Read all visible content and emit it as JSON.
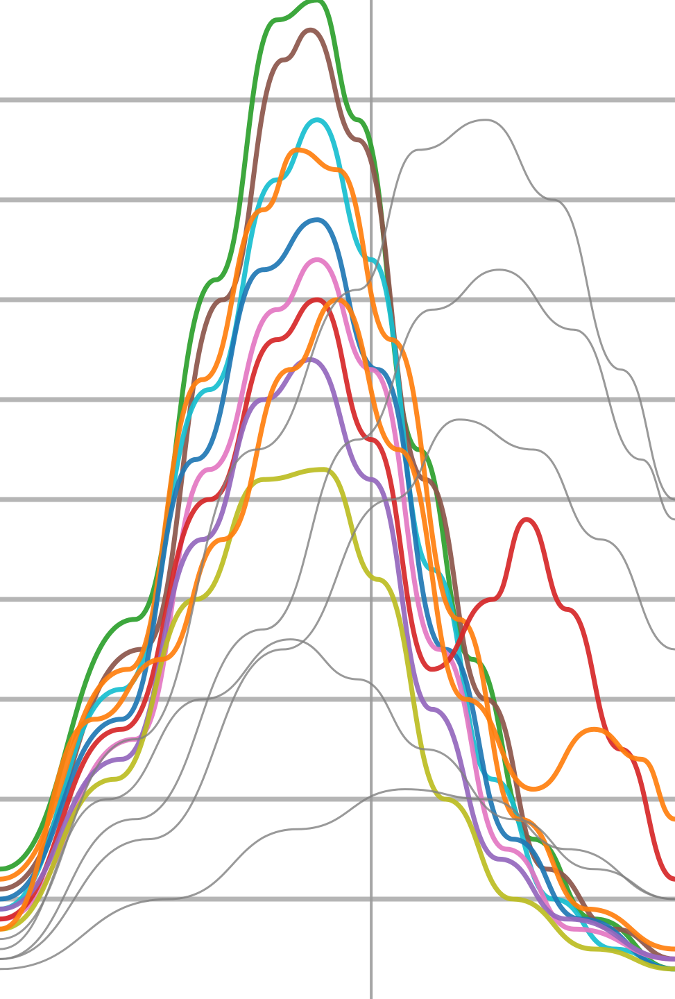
{
  "chart_data": {
    "type": "line",
    "title": "",
    "xlabel": "",
    "ylabel": "",
    "grid": true,
    "legend": "none",
    "xlim": [
      0,
      100
    ],
    "ylim": [
      0,
      100
    ],
    "series_style": "many overlapping curves, one thin gray family and one thick colored family",
    "series": [
      {
        "color": "#2ca02c",
        "values": [
          [
            0,
            13
          ],
          [
            20,
            38
          ],
          [
            32,
            72
          ],
          [
            41,
            98
          ],
          [
            47,
            100
          ],
          [
            53,
            88
          ],
          [
            62,
            55
          ],
          [
            70,
            34
          ],
          [
            79,
            16
          ],
          [
            88,
            8
          ],
          [
            100,
            3
          ]
        ]
      },
      {
        "color": "#8c564b",
        "values": [
          [
            0,
            11
          ],
          [
            21,
            35
          ],
          [
            33,
            70
          ],
          [
            42,
            94
          ],
          [
            46,
            97
          ],
          [
            53,
            86
          ],
          [
            63,
            52
          ],
          [
            72,
            30
          ],
          [
            81,
            13
          ],
          [
            91,
            7
          ],
          [
            100,
            4
          ]
        ]
      },
      {
        "color": "#17becf",
        "values": [
          [
            0,
            9
          ],
          [
            18,
            31
          ],
          [
            31,
            61
          ],
          [
            41,
            82
          ],
          [
            47,
            88
          ],
          [
            55,
            74
          ],
          [
            64,
            43
          ],
          [
            73,
            22
          ],
          [
            82,
            10
          ],
          [
            91,
            5
          ],
          [
            100,
            3
          ]
        ]
      },
      {
        "color": "#ff7f0e",
        "values": [
          [
            0,
            12
          ],
          [
            19,
            33
          ],
          [
            30,
            62
          ],
          [
            39,
            79
          ],
          [
            44,
            85
          ],
          [
            50,
            83
          ],
          [
            58,
            66
          ],
          [
            68,
            38
          ],
          [
            77,
            18
          ],
          [
            87,
            9
          ],
          [
            100,
            5
          ]
        ]
      },
      {
        "color": "#1f77b4",
        "values": [
          [
            0,
            10
          ],
          [
            18,
            28
          ],
          [
            29,
            54
          ],
          [
            39,
            73
          ],
          [
            47,
            78
          ],
          [
            56,
            63
          ],
          [
            66,
            35
          ],
          [
            76,
            16
          ],
          [
            86,
            8
          ],
          [
            100,
            3
          ]
        ]
      },
      {
        "color": "#e377c2",
        "values": [
          [
            0,
            8
          ],
          [
            20,
            26
          ],
          [
            31,
            53
          ],
          [
            41,
            69
          ],
          [
            47,
            74
          ],
          [
            55,
            63
          ],
          [
            65,
            35
          ],
          [
            75,
            15
          ],
          [
            85,
            7
          ],
          [
            100,
            4
          ]
        ]
      },
      {
        "color": "#d62728",
        "values": [
          [
            0,
            8
          ],
          [
            18,
            27
          ],
          [
            31,
            50
          ],
          [
            41,
            66
          ],
          [
            47,
            70
          ],
          [
            55,
            56
          ],
          [
            64,
            33
          ],
          [
            73,
            40
          ],
          [
            78,
            48
          ],
          [
            84,
            39
          ],
          [
            92,
            25
          ],
          [
            100,
            12
          ]
        ]
      },
      {
        "color": "#9467bd",
        "values": [
          [
            0,
            9
          ],
          [
            18,
            24
          ],
          [
            30,
            46
          ],
          [
            39,
            60
          ],
          [
            46,
            64
          ],
          [
            55,
            52
          ],
          [
            64,
            29
          ],
          [
            74,
            14
          ],
          [
            84,
            8
          ],
          [
            100,
            4
          ]
        ]
      },
      {
        "color": "#bcbd22",
        "values": [
          [
            0,
            7
          ],
          [
            17,
            22
          ],
          [
            29,
            40
          ],
          [
            39,
            52
          ],
          [
            48,
            53
          ],
          [
            56,
            42
          ],
          [
            66,
            20
          ],
          [
            76,
            10
          ],
          [
            88,
            5
          ],
          [
            100,
            3
          ]
        ]
      },
      {
        "color": "#ff7f0e",
        "values": [
          [
            0,
            7
          ],
          [
            14,
            28
          ],
          [
            24,
            34
          ],
          [
            33,
            46
          ],
          [
            43,
            63
          ],
          [
            50,
            70
          ],
          [
            59,
            55
          ],
          [
            69,
            30
          ],
          [
            79,
            21
          ],
          [
            88,
            27
          ],
          [
            95,
            24
          ],
          [
            100,
            18
          ]
        ]
      },
      {
        "color": "#7f7f7f",
        "values": [
          [
            0,
            6
          ],
          [
            20,
            26
          ],
          [
            38,
            55
          ],
          [
            53,
            71
          ],
          [
            62,
            85
          ],
          [
            72,
            88
          ],
          [
            82,
            80
          ],
          [
            92,
            63
          ],
          [
            100,
            50
          ]
        ]
      },
      {
        "color": "#7f7f7f",
        "values": [
          [
            0,
            4
          ],
          [
            20,
            18
          ],
          [
            39,
            37
          ],
          [
            53,
            56
          ],
          [
            64,
            69
          ],
          [
            74,
            73
          ],
          [
            85,
            67
          ],
          [
            95,
            54
          ],
          [
            100,
            48
          ]
        ]
      },
      {
        "color": "#7f7f7f",
        "values": [
          [
            0,
            4
          ],
          [
            22,
            16
          ],
          [
            42,
            35
          ],
          [
            58,
            50
          ],
          [
            68,
            58
          ],
          [
            79,
            55
          ],
          [
            89,
            46
          ],
          [
            100,
            35
          ]
        ]
      },
      {
        "color": "#7f7f7f",
        "values": [
          [
            0,
            5
          ],
          [
            16,
            20
          ],
          [
            30,
            30
          ],
          [
            43,
            36
          ],
          [
            53,
            32
          ],
          [
            63,
            25
          ],
          [
            76,
            18
          ],
          [
            88,
            13
          ],
          [
            100,
            10
          ]
        ]
      },
      {
        "color": "#7f7f7f",
        "values": [
          [
            0,
            3
          ],
          [
            25,
            10
          ],
          [
            44,
            17
          ],
          [
            60,
            21
          ],
          [
            72,
            20
          ],
          [
            84,
            15
          ],
          [
            100,
            10
          ]
        ]
      }
    ]
  }
}
